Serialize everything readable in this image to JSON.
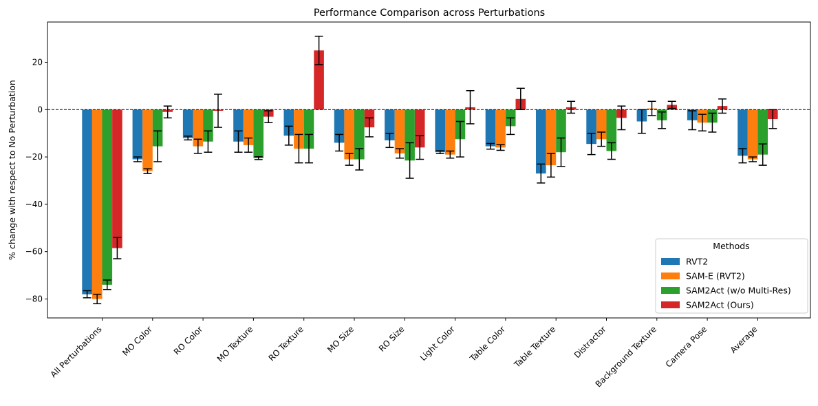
{
  "chart_data": {
    "type": "bar",
    "title": "Performance Comparison across Perturbations",
    "xlabel": "",
    "ylabel": "% change with respect to No Perturbation",
    "ylim": [
      -88,
      37
    ],
    "yticks": [
      -80,
      -60,
      -40,
      -20,
      0,
      20
    ],
    "grid": false,
    "reference_line": 0,
    "categories": [
      "All Perturbations",
      "MO Color",
      "RO Color",
      "MO Texture",
      "RO Texture",
      "MO Size",
      "RO Size",
      "Light Color",
      "Table Color",
      "Table Texture",
      "Distractor",
      "Background Texture",
      "Camera Pose",
      "Average"
    ],
    "series": [
      {
        "name": "RVT2",
        "color": "#1f77b4",
        "values": [
          -78,
          -21,
          -12,
          -13.5,
          -11,
          -14,
          -13,
          -18,
          -15.5,
          -27,
          -14.5,
          -5,
          -4.5,
          -19.5
        ],
        "errors": [
          1.5,
          1,
          0.8,
          4.5,
          4,
          3.5,
          3,
          0.6,
          1.2,
          4,
          4.5,
          5,
          4,
          3
        ]
      },
      {
        "name": "SAM-E (RVT2)",
        "color": "#ff7f0e",
        "values": [
          -80,
          -26,
          -15.5,
          -15,
          -16.5,
          -21,
          -18.5,
          -19,
          -16,
          -23.5,
          -12.5,
          0.5,
          -5.5,
          -21
        ],
        "errors": [
          2,
          1,
          3,
          3,
          6,
          2.5,
          2,
          1.5,
          1.2,
          5,
          3,
          3,
          3.5,
          1
        ]
      },
      {
        "name": "SAM2Act (w/o Multi-Res)",
        "color": "#2ca02c",
        "values": [
          -74,
          -15.5,
          -13.5,
          -20.5,
          -16.5,
          -21,
          -21.5,
          -12.5,
          -7,
          -18,
          -17.5,
          -4.5,
          -5.5,
          -19
        ],
        "errors": [
          2,
          6.5,
          4.5,
          0.6,
          6,
          4.5,
          7.5,
          7.5,
          3.5,
          6,
          3.5,
          3.5,
          4,
          4.5
        ]
      },
      {
        "name": "SAM2Act (Ours)",
        "color": "#d62728",
        "values": [
          -58.5,
          -1,
          -0.5,
          -3,
          25,
          -7.5,
          -16,
          1,
          4.5,
          1,
          -3.5,
          2,
          1.5,
          -4
        ],
        "errors": [
          4.5,
          2.5,
          7,
          2.5,
          6,
          4,
          5,
          7,
          4.5,
          2.5,
          5,
          1.5,
          3,
          4
        ]
      }
    ],
    "legend": {
      "title": "Methods",
      "placement": "lower right"
    }
  }
}
